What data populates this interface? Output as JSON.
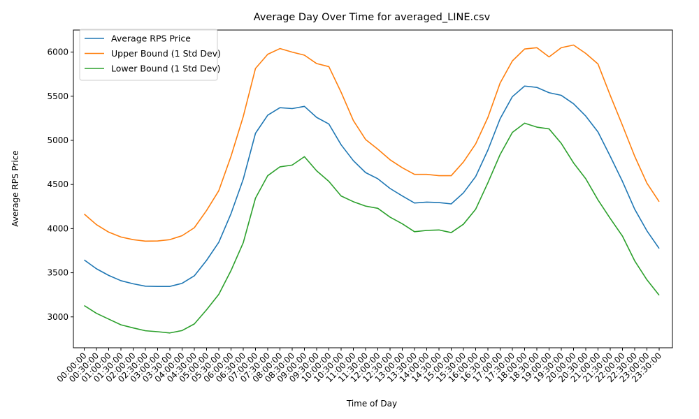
{
  "chart_data": {
    "type": "line",
    "title": "Average Day Over Time for averaged_LINE.csv",
    "xlabel": "Time of Day",
    "ylabel": "Average RPS Price",
    "ylim": [
      2650,
      6250
    ],
    "yticks": [
      3000,
      3500,
      4000,
      4500,
      5000,
      5500,
      6000
    ],
    "grid": false,
    "legend_position": "top-left",
    "x": [
      "00:00:00",
      "00:30:00",
      "01:00:00",
      "01:30:00",
      "02:00:00",
      "02:30:00",
      "03:00:00",
      "03:30:00",
      "04:00:00",
      "04:30:00",
      "05:00:00",
      "05:30:00",
      "06:00:00",
      "06:30:00",
      "07:00:00",
      "07:30:00",
      "08:00:00",
      "08:30:00",
      "09:00:00",
      "09:30:00",
      "10:00:00",
      "10:30:00",
      "11:00:00",
      "11:30:00",
      "12:00:00",
      "12:30:00",
      "13:00:00",
      "13:30:00",
      "14:00:00",
      "14:30:00",
      "15:00:00",
      "15:30:00",
      "16:00:00",
      "16:30:00",
      "17:00:00",
      "17:30:00",
      "18:00:00",
      "18:30:00",
      "19:00:00",
      "19:30:00",
      "20:00:00",
      "20:30:00",
      "21:00:00",
      "21:30:00",
      "22:00:00",
      "22:30:00",
      "23:00:00",
      "23:30:00"
    ],
    "series": [
      {
        "name": "Average RPS Price",
        "color": "#1f77b4",
        "values": [
          3645,
          3545,
          3470,
          3410,
          3375,
          3348,
          3345,
          3345,
          3380,
          3465,
          3640,
          3845,
          4170,
          4560,
          5080,
          5285,
          5370,
          5360,
          5385,
          5260,
          5185,
          4950,
          4770,
          4635,
          4565,
          4455,
          4370,
          4290,
          4300,
          4295,
          4280,
          4405,
          4590,
          4890,
          5245,
          5495,
          5615,
          5600,
          5540,
          5510,
          5415,
          5275,
          5095,
          4820,
          4535,
          4220,
          3975,
          3775
        ]
      },
      {
        "name": "Upper Bound (1 Std Dev)",
        "color": "#ff7f0e",
        "values": [
          4165,
          4045,
          3960,
          3905,
          3875,
          3858,
          3860,
          3875,
          3920,
          4010,
          4205,
          4430,
          4820,
          5270,
          5815,
          5975,
          6040,
          6000,
          5965,
          5870,
          5835,
          5545,
          5225,
          5010,
          4900,
          4780,
          4690,
          4615,
          4615,
          4600,
          4600,
          4755,
          4960,
          5260,
          5650,
          5900,
          6035,
          6050,
          5945,
          6050,
          6080,
          5985,
          5865,
          5510,
          5170,
          4820,
          4515,
          4305
        ]
      },
      {
        "name": "Lower Bound (1 Std Dev)",
        "color": "#2ca02c",
        "values": [
          3128,
          3040,
          2975,
          2910,
          2875,
          2843,
          2832,
          2818,
          2845,
          2920,
          3080,
          3255,
          3525,
          3840,
          4345,
          4600,
          4700,
          4720,
          4815,
          4655,
          4535,
          4370,
          4305,
          4255,
          4230,
          4130,
          4055,
          3965,
          3980,
          3985,
          3955,
          4050,
          4220,
          4520,
          4840,
          5090,
          5195,
          5150,
          5130,
          4965,
          4745,
          4565,
          4325,
          4115,
          3915,
          3635,
          3420,
          3245
        ]
      }
    ]
  }
}
